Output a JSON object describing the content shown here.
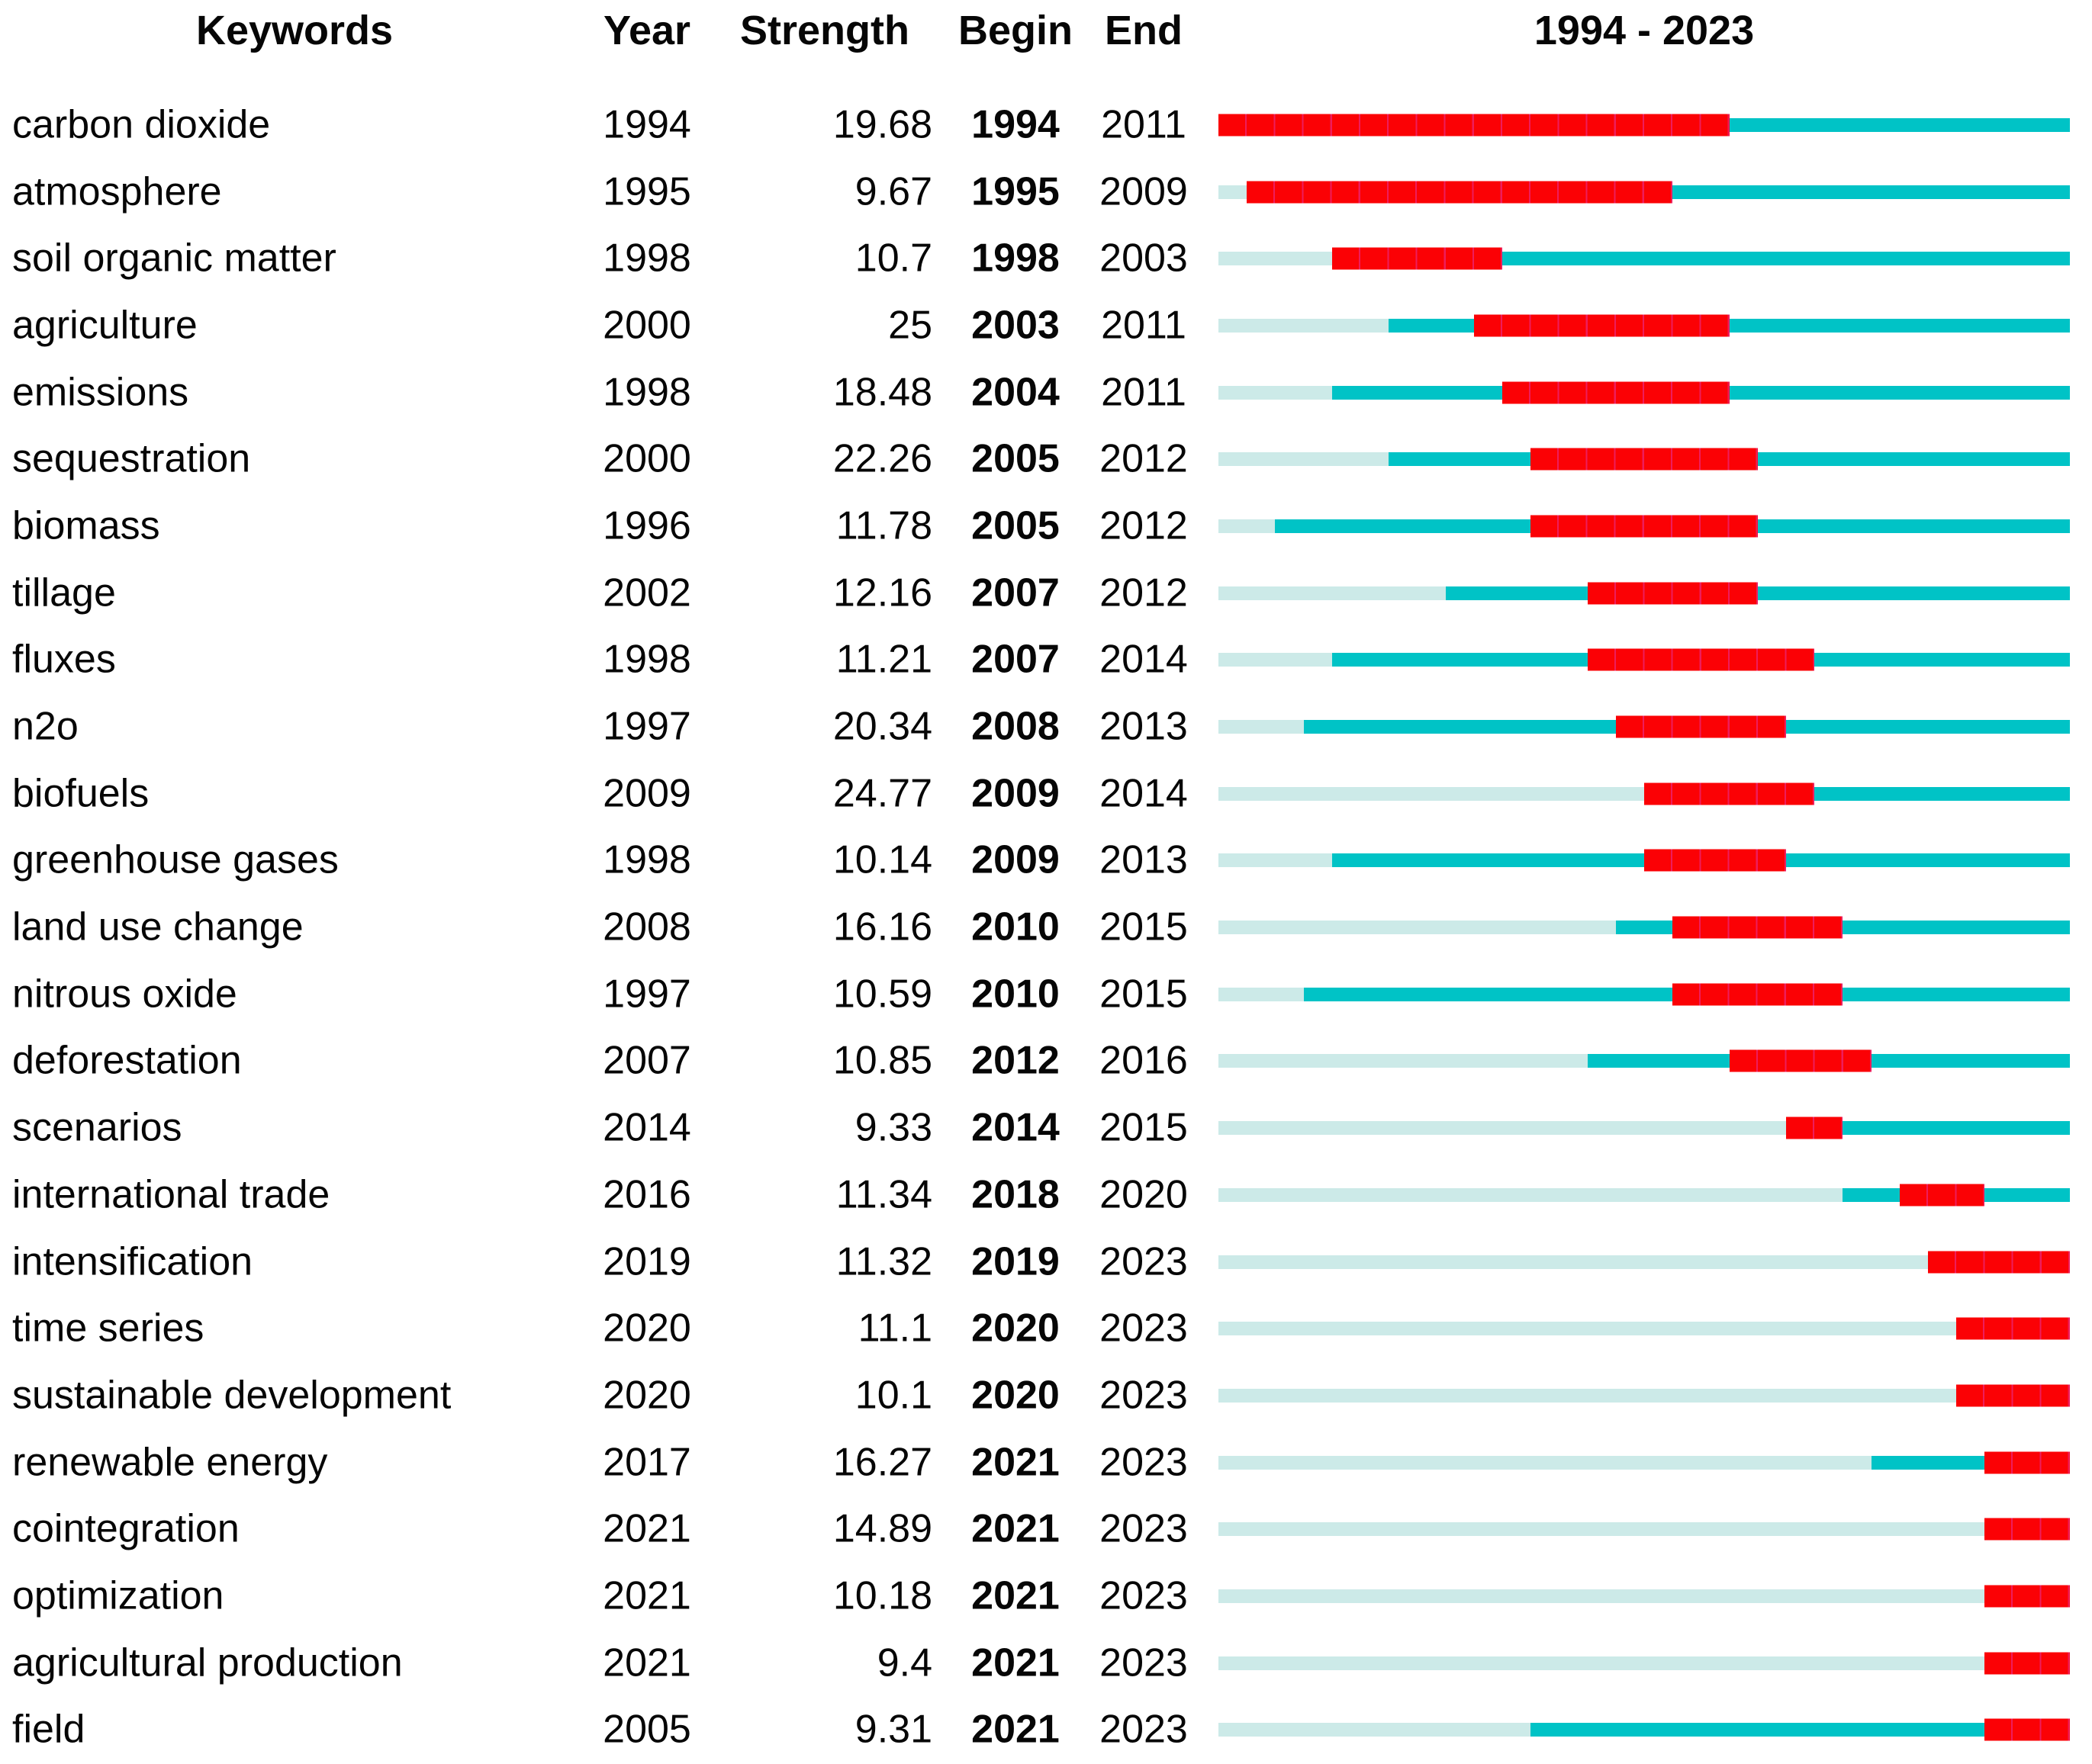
{
  "header": {
    "keywords": "Keywords",
    "year": "Year",
    "strength": "Strength",
    "begin": "Begin",
    "end": "End",
    "range": "1994 - 2023"
  },
  "colors": {
    "burst": "#fb0105",
    "burst_divider": "#ee1d5c",
    "active": "#00c3c6",
    "inactive": "#cceae8"
  },
  "chart_data": {
    "type": "table",
    "subtype": "citespace-keyword-burst-timeline",
    "x_range": [
      1994,
      2023
    ],
    "legend": {
      "burst_color_meaning": "burst period (Begin-End)",
      "active_color_meaning": "keyword present, no burst",
      "inactive_color_meaning": "before first appearance of keyword"
    },
    "columns": [
      "Keywords",
      "Year",
      "Strength",
      "Begin",
      "End"
    ],
    "rows": [
      {
        "keyword": "carbon dioxide",
        "year": 1994,
        "strength": "19.68",
        "begin": 1994,
        "end": 2011
      },
      {
        "keyword": "atmosphere",
        "year": 1995,
        "strength": "9.67",
        "begin": 1995,
        "end": 2009
      },
      {
        "keyword": "soil organic matter",
        "year": 1998,
        "strength": "10.7",
        "begin": 1998,
        "end": 2003
      },
      {
        "keyword": "agriculture",
        "year": 2000,
        "strength": "25",
        "begin": 2003,
        "end": 2011
      },
      {
        "keyword": "emissions",
        "year": 1998,
        "strength": "18.48",
        "begin": 2004,
        "end": 2011
      },
      {
        "keyword": "sequestration",
        "year": 2000,
        "strength": "22.26",
        "begin": 2005,
        "end": 2012
      },
      {
        "keyword": "biomass",
        "year": 1996,
        "strength": "11.78",
        "begin": 2005,
        "end": 2012
      },
      {
        "keyword": "tillage",
        "year": 2002,
        "strength": "12.16",
        "begin": 2007,
        "end": 2012
      },
      {
        "keyword": "fluxes",
        "year": 1998,
        "strength": "11.21",
        "begin": 2007,
        "end": 2014
      },
      {
        "keyword": "n2o",
        "year": 1997,
        "strength": "20.34",
        "begin": 2008,
        "end": 2013
      },
      {
        "keyword": "biofuels",
        "year": 2009,
        "strength": "24.77",
        "begin": 2009,
        "end": 2014
      },
      {
        "keyword": "greenhouse gases",
        "year": 1998,
        "strength": "10.14",
        "begin": 2009,
        "end": 2013
      },
      {
        "keyword": "land use change",
        "year": 2008,
        "strength": "16.16",
        "begin": 2010,
        "end": 2015
      },
      {
        "keyword": "nitrous oxide",
        "year": 1997,
        "strength": "10.59",
        "begin": 2010,
        "end": 2015
      },
      {
        "keyword": "deforestation",
        "year": 2007,
        "strength": "10.85",
        "begin": 2012,
        "end": 2016
      },
      {
        "keyword": "scenarios",
        "year": 2014,
        "strength": "9.33",
        "begin": 2014,
        "end": 2015
      },
      {
        "keyword": "international trade",
        "year": 2016,
        "strength": "11.34",
        "begin": 2018,
        "end": 2020
      },
      {
        "keyword": "intensification",
        "year": 2019,
        "strength": "11.32",
        "begin": 2019,
        "end": 2023
      },
      {
        "keyword": "time series",
        "year": 2020,
        "strength": "11.1",
        "begin": 2020,
        "end": 2023
      },
      {
        "keyword": "sustainable development",
        "year": 2020,
        "strength": "10.1",
        "begin": 2020,
        "end": 2023
      },
      {
        "keyword": "renewable energy",
        "year": 2017,
        "strength": "16.27",
        "begin": 2021,
        "end": 2023
      },
      {
        "keyword": "cointegration",
        "year": 2021,
        "strength": "14.89",
        "begin": 2021,
        "end": 2023
      },
      {
        "keyword": "optimization",
        "year": 2021,
        "strength": "10.18",
        "begin": 2021,
        "end": 2023
      },
      {
        "keyword": "agricultural production",
        "year": 2021,
        "strength": "9.4",
        "begin": 2021,
        "end": 2023
      },
      {
        "keyword": "field",
        "year": 2005,
        "strength": "9.31",
        "begin": 2021,
        "end": 2023
      }
    ]
  }
}
